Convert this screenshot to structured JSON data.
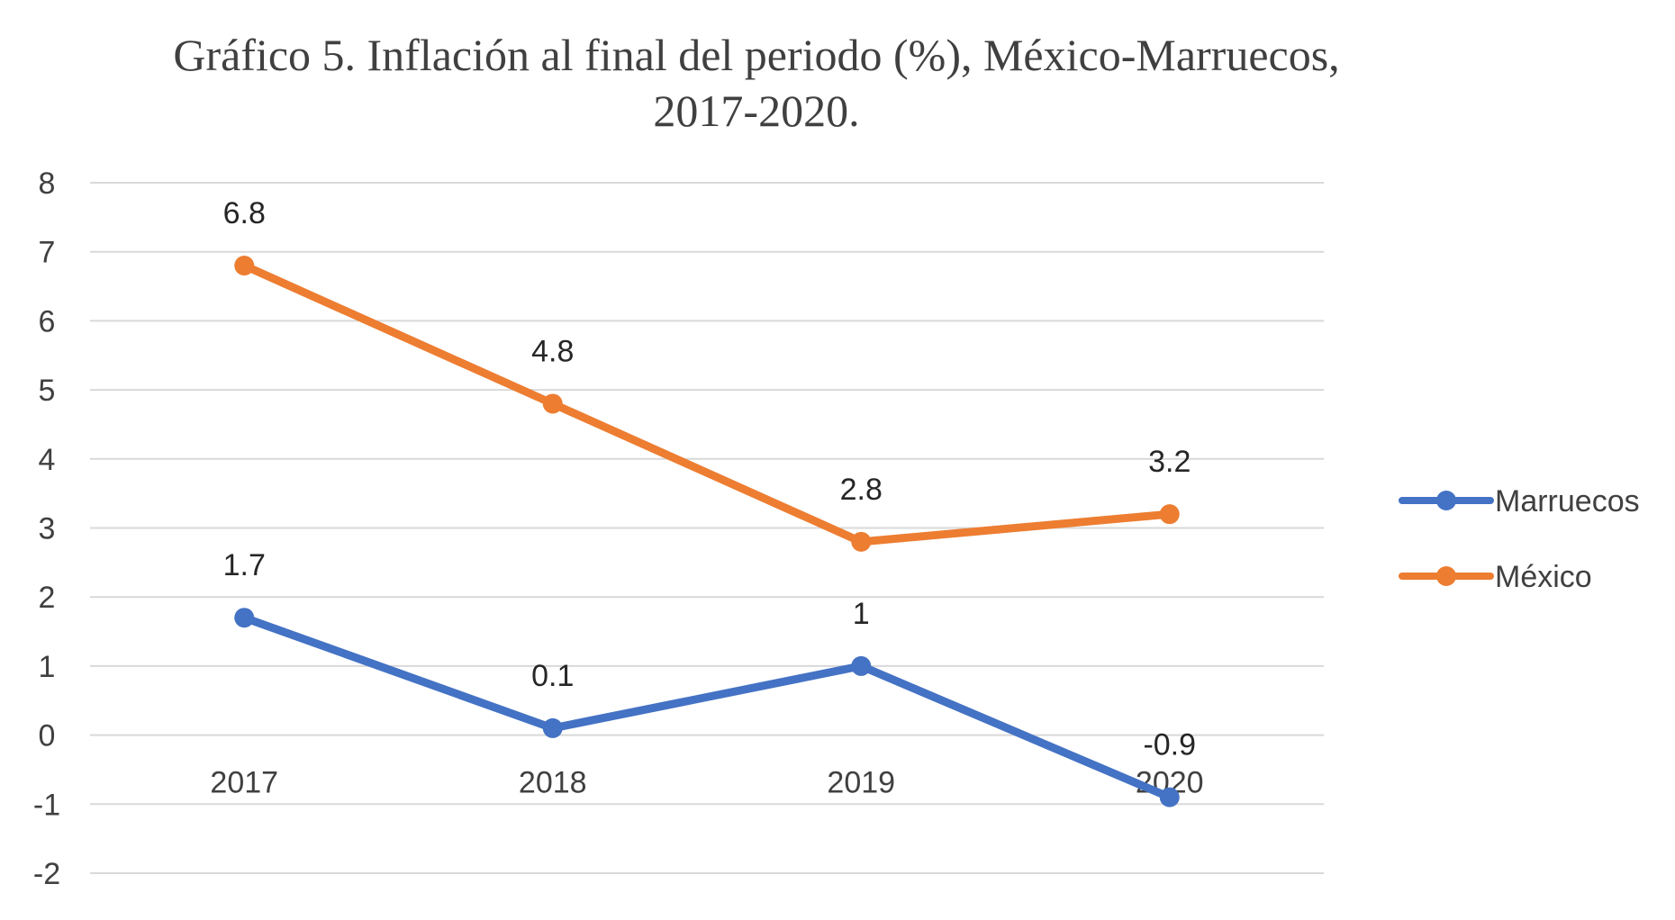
{
  "chart_data": {
    "type": "line",
    "title": "Gráfico 5. Inflación al final del periodo (%), México-Marruecos, 2017-2020.",
    "categories": [
      "2017",
      "2018",
      "2019",
      "2020"
    ],
    "ylim": [
      -2,
      8
    ],
    "yticks": [
      "-2",
      "-1",
      "0",
      "1",
      "2",
      "3",
      "4",
      "5",
      "6",
      "7",
      "8"
    ],
    "grid": true,
    "legend": "right",
    "series": [
      {
        "name": "Marruecos",
        "values": [
          1.7,
          0.1,
          1,
          -0.9
        ],
        "labels": [
          "1.7",
          "0.1",
          "1",
          "-0.9"
        ],
        "color": "#4472C4"
      },
      {
        "name": "México",
        "values": [
          6.8,
          4.8,
          2.8,
          3.2
        ],
        "labels": [
          "6.8",
          "4.8",
          "2.8",
          "3.2"
        ],
        "color": "#ED7D31"
      }
    ]
  }
}
